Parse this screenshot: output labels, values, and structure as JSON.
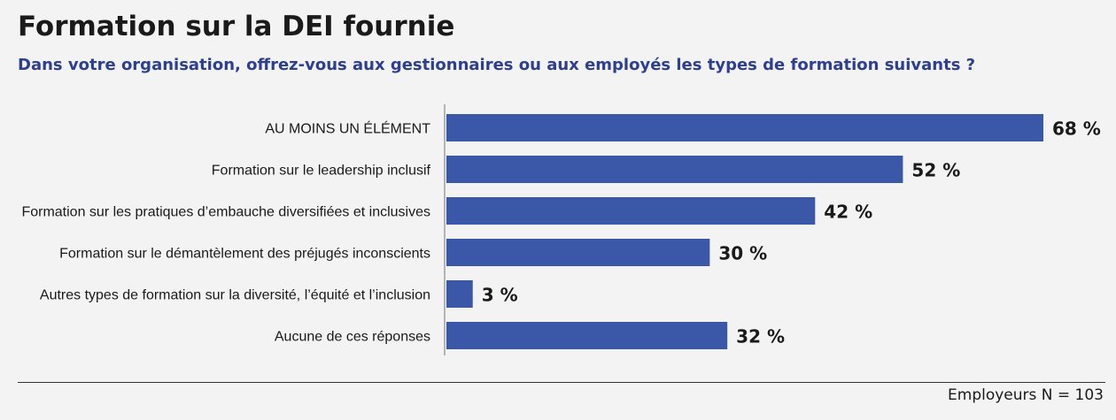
{
  "title": "Formation sur la DEI fournie",
  "subtitle": "Dans votre organisation, offrez-vous aux gestionnaires ou aux employés les types de formation suivants ?",
  "footnote": "Employeurs N = 103",
  "colors": {
    "bar": "#3a57a8",
    "subtitle": "#2e3f92",
    "axis": "#b5b5b5"
  },
  "chart_data": {
    "type": "bar",
    "orientation": "horizontal",
    "categories": [
      "AU MOINS UN ÉLÉMENT",
      "Formation sur le leadership inclusif",
      "Formation sur les pratiques d’embauche diversifiées et inclusives",
      "Formation sur le démantèlement des préjugés inconscients",
      "Autres types de formation sur la diversité, l’équité et l’inclusion",
      "Aucune de ces réponses"
    ],
    "values": [
      68,
      52,
      42,
      30,
      3,
      32
    ],
    "value_labels": [
      "68 %",
      "52 %",
      "42 %",
      "30 %",
      "3 %",
      "32 %"
    ],
    "unit": "%",
    "xlim": [
      0,
      68
    ],
    "grid": false,
    "legend": "none"
  }
}
